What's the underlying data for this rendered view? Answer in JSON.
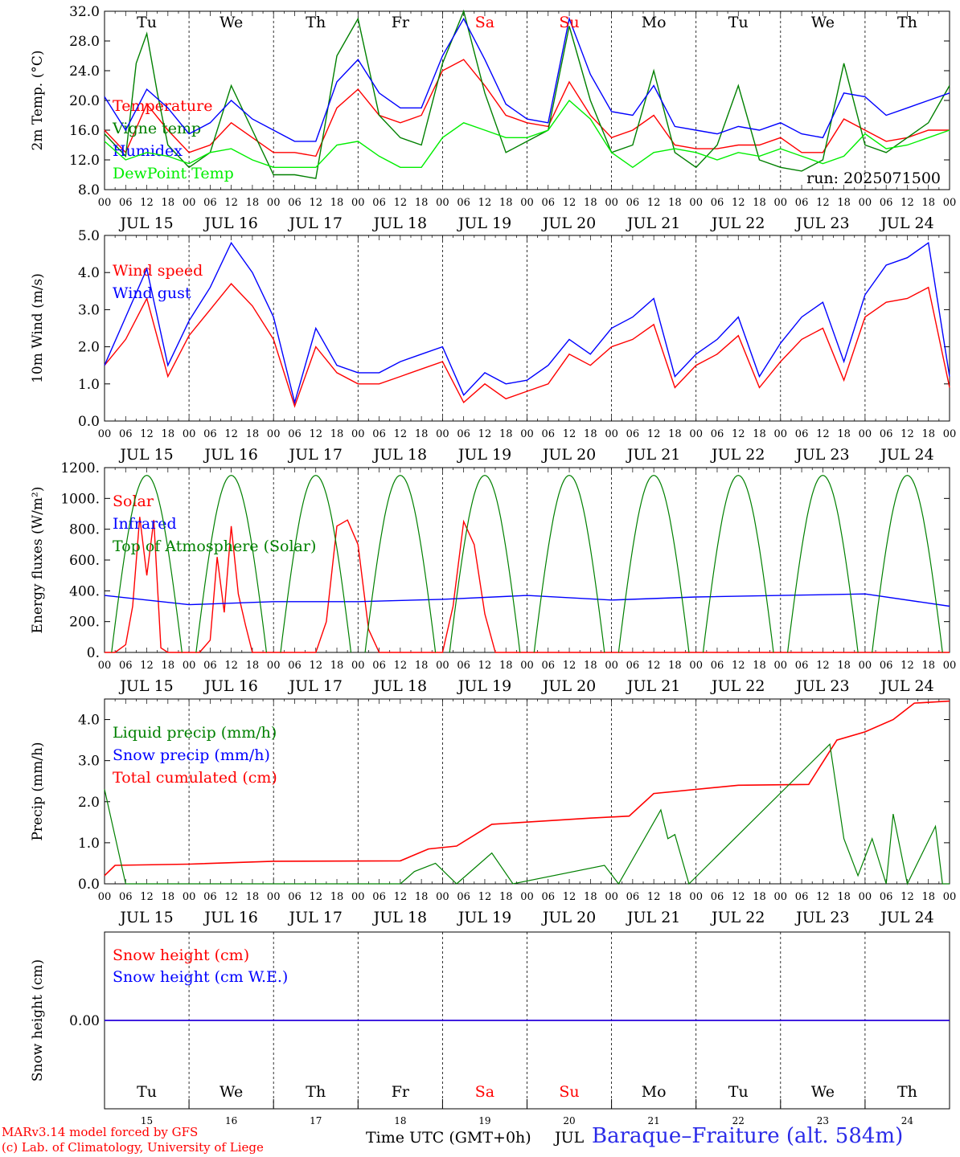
{
  "meta": {
    "run_label": "run: 2025071500",
    "time_axis_label": "Time UTC (GMT+0h)",
    "month_label": "JUL",
    "station_label": "Baraque–Fraiture (alt. 584m)",
    "credit_line1": "MARv3.14 model forced by GFS",
    "credit_line2": "(c) Lab. of Climatology, University of Liege",
    "colors": {
      "red": "#ff0000",
      "green": "#008000",
      "blue": "#0000ff",
      "lime": "#00ee00",
      "station": "#2a2ae8"
    }
  },
  "axis": {
    "hour_ticks": [
      "00",
      "06",
      "12",
      "18"
    ],
    "date_labels": [
      "JUL 15",
      "JUL 16",
      "JUL 17",
      "JUL 18",
      "JUL 19",
      "JUL 20",
      "JUL 21",
      "JUL 22",
      "JUL 23",
      "JUL 24"
    ],
    "weekdays": [
      "Tu",
      "We",
      "Th",
      "Fr",
      "Sa",
      "Su",
      "Mo",
      "Tu",
      "We",
      "Th"
    ],
    "weekend_flags": [
      false,
      false,
      false,
      false,
      true,
      true,
      false,
      false,
      false,
      false
    ],
    "day_numbers": [
      "15",
      "16",
      "17",
      "18",
      "19",
      "20",
      "21",
      "22",
      "23",
      "24"
    ]
  },
  "chart_data": [
    {
      "type": "line",
      "ylabel": "2m Temp. (°C)",
      "ylim": [
        8,
        32
      ],
      "yticks": [
        "32.0",
        "28.0",
        "24.0",
        "20.0",
        "16.0",
        "12.0",
        "8.0"
      ],
      "x_unit": "hours from 2025-07-15 00 UTC",
      "show_weekdays_top": true,
      "series": [
        {
          "name": "Temperature",
          "color": "#ff0000",
          "x": [
            0,
            6,
            12,
            18,
            24,
            30,
            36,
            42,
            48,
            54,
            60,
            66,
            72,
            78,
            84,
            90,
            96,
            102,
            108,
            114,
            120,
            126,
            132,
            138,
            144,
            150,
            156,
            162,
            168,
            174,
            180,
            186,
            192,
            198,
            204,
            210,
            216,
            222,
            228,
            234,
            240
          ],
          "values": [
            16,
            13,
            19.5,
            16,
            13,
            14,
            17,
            15,
            13,
            13,
            12.5,
            19,
            21.5,
            18,
            17,
            18,
            24,
            25.5,
            22,
            18,
            17,
            16.5,
            22.5,
            18,
            15,
            16,
            18,
            14,
            13.5,
            13.5,
            14,
            14,
            15,
            13,
            13,
            17.5,
            16,
            14.5,
            15,
            16,
            16
          ]
        },
        {
          "name": "Vigne temp",
          "color": "#008000",
          "x": [
            0,
            6,
            9,
            12,
            15,
            18,
            24,
            30,
            36,
            42,
            48,
            54,
            60,
            66,
            72,
            78,
            84,
            90,
            96,
            102,
            108,
            114,
            120,
            126,
            132,
            138,
            144,
            150,
            156,
            162,
            168,
            174,
            180,
            186,
            192,
            198,
            204,
            210,
            216,
            222,
            228,
            234,
            240
          ],
          "values": [
            15.5,
            12.5,
            25,
            29,
            21,
            14,
            11,
            13,
            22,
            16,
            10,
            10,
            9.5,
            26,
            31,
            18,
            15,
            14,
            25,
            32,
            21,
            13,
            14.5,
            16,
            30,
            20,
            13,
            14,
            24,
            13,
            11,
            14,
            22,
            12,
            11,
            10.5,
            12,
            25,
            14,
            13,
            15,
            17,
            22
          ]
        },
        {
          "name": "Humidex",
          "color": "#0000ff",
          "x": [
            0,
            6,
            12,
            18,
            24,
            30,
            36,
            42,
            48,
            54,
            60,
            66,
            72,
            78,
            84,
            90,
            96,
            102,
            108,
            114,
            120,
            126,
            132,
            138,
            144,
            150,
            156,
            162,
            168,
            174,
            180,
            186,
            192,
            198,
            204,
            210,
            216,
            222,
            228,
            234,
            240
          ],
          "values": [
            20.5,
            16,
            21.5,
            19,
            15.5,
            17,
            20,
            17.5,
            16,
            14.5,
            14.5,
            22.5,
            25.5,
            21,
            19,
            19,
            26,
            31,
            25.5,
            19.5,
            17.5,
            17,
            31,
            23.5,
            18.5,
            18,
            22,
            16.5,
            16,
            15.5,
            16.5,
            16,
            17,
            15.5,
            15,
            21,
            20.5,
            18,
            19,
            20,
            21
          ]
        },
        {
          "name": "DewPoint Temp",
          "color": "#00ee00",
          "x": [
            0,
            6,
            12,
            18,
            24,
            30,
            36,
            42,
            48,
            54,
            60,
            66,
            72,
            78,
            84,
            90,
            96,
            102,
            108,
            114,
            120,
            126,
            132,
            138,
            144,
            150,
            156,
            162,
            168,
            174,
            180,
            186,
            192,
            198,
            204,
            210,
            216,
            222,
            228,
            234,
            240
          ],
          "values": [
            14.5,
            12,
            13,
            12.5,
            11.5,
            13,
            13.5,
            12,
            11,
            11,
            11,
            14,
            14.5,
            12.5,
            11,
            11,
            15,
            17,
            16,
            15,
            15,
            16,
            20,
            17.5,
            13,
            11,
            13,
            13.5,
            13,
            12,
            13,
            12.5,
            13.5,
            12.5,
            11.5,
            12.5,
            15.5,
            13.5,
            14,
            15,
            16
          ]
        }
      ]
    },
    {
      "type": "line",
      "ylabel": "10m Wind (m/s)",
      "ylim": [
        0,
        5
      ],
      "yticks": [
        "5.0",
        "4.0",
        "3.0",
        "2.0",
        "1.0",
        "0.0"
      ],
      "series": [
        {
          "name": "Wind speed",
          "color": "#ff0000",
          "x": [
            0,
            6,
            12,
            18,
            24,
            30,
            36,
            42,
            48,
            54,
            60,
            66,
            72,
            78,
            84,
            90,
            96,
            102,
            108,
            114,
            120,
            126,
            132,
            138,
            144,
            150,
            156,
            162,
            168,
            174,
            180,
            186,
            192,
            198,
            204,
            210,
            216,
            222,
            228,
            234,
            240
          ],
          "values": [
            1.5,
            2.2,
            3.3,
            1.2,
            2.3,
            3,
            3.7,
            3.1,
            2.2,
            0.4,
            2,
            1.3,
            1,
            1,
            1.2,
            1.4,
            1.6,
            0.5,
            1,
            0.6,
            0.8,
            1,
            1.8,
            1.5,
            2,
            2.2,
            2.6,
            0.9,
            1.5,
            1.8,
            2.3,
            0.9,
            1.6,
            2.2,
            2.5,
            1.1,
            2.8,
            3.2,
            3.3,
            3.6,
            0.9
          ]
        },
        {
          "name": "Wind gust",
          "color": "#0000ff",
          "x": [
            0,
            6,
            12,
            18,
            24,
            30,
            36,
            42,
            48,
            54,
            60,
            66,
            72,
            78,
            84,
            90,
            96,
            102,
            108,
            114,
            120,
            126,
            132,
            138,
            144,
            150,
            156,
            162,
            168,
            174,
            180,
            186,
            192,
            198,
            204,
            210,
            216,
            222,
            228,
            234,
            240
          ],
          "values": [
            1.5,
            2.8,
            4.1,
            1.5,
            2.7,
            3.6,
            4.8,
            4,
            2.8,
            0.5,
            2.5,
            1.5,
            1.3,
            1.3,
            1.6,
            1.8,
            2.0,
            0.7,
            1.3,
            1.0,
            1.1,
            1.5,
            2.2,
            1.8,
            2.5,
            2.8,
            3.3,
            1.2,
            1.8,
            2.2,
            2.8,
            1.2,
            2.1,
            2.8,
            3.2,
            1.6,
            3.4,
            4.2,
            4.4,
            4.8,
            1.2
          ]
        }
      ]
    },
    {
      "type": "line",
      "ylabel": "Energy fluxes (W/m²)",
      "ylim": [
        0,
        1200
      ],
      "yticks": [
        "1200.",
        "1000.",
        "800.",
        "600.",
        "400.",
        "200.",
        "0."
      ],
      "series": [
        {
          "name": "Solar",
          "color": "#ff0000",
          "x": [
            0,
            3,
            6,
            8,
            10,
            12,
            14,
            16,
            18,
            21,
            24,
            27,
            30,
            32,
            34,
            36,
            38,
            40,
            42,
            45,
            48,
            51,
            54,
            57,
            60,
            63,
            66,
            69,
            72,
            75,
            78,
            81,
            84,
            90,
            96,
            99,
            102,
            105,
            108,
            111,
            114,
            117,
            120,
            123,
            126,
            129,
            132,
            135,
            138,
            141,
            144,
            150,
            156,
            159,
            162,
            165,
            168,
            171,
            174,
            177,
            180,
            183,
            186,
            192,
            198,
            201,
            204,
            207,
            210,
            213,
            216,
            219,
            222,
            225,
            228,
            234,
            240,
            243,
            246,
            249,
            252,
            255,
            258,
            261,
            264,
            267,
            270,
            273,
            276
          ],
          "values": [
            0,
            0,
            50,
            300,
            880,
            500,
            860,
            30,
            0,
            0,
            0,
            0,
            80,
            620,
            260,
            820,
            380,
            180,
            0,
            0,
            0,
            0,
            0,
            0,
            0,
            200,
            820,
            860,
            700,
            150,
            0,
            0,
            0,
            0,
            0,
            300,
            850,
            700,
            250,
            0,
            0,
            0,
            0,
            0,
            0,
            0,
            0,
            0,
            0,
            0,
            0,
            0,
            0,
            0,
            0,
            0,
            0,
            0,
            0,
            0,
            0,
            0,
            0,
            0,
            0,
            0,
            0,
            0,
            0,
            0,
            0,
            0,
            0,
            0,
            0,
            0,
            0,
            0,
            0,
            0,
            0,
            0,
            0,
            0,
            0,
            0,
            0,
            0,
            0
          ]
        },
        {
          "name": "Infrared",
          "color": "#0000ff",
          "x": [
            0,
            24,
            48,
            72,
            96,
            120,
            144,
            168,
            192,
            216,
            240
          ],
          "values": [
            370,
            310,
            330,
            330,
            345,
            370,
            340,
            360,
            370,
            380,
            300
          ]
        },
        {
          "name": "Top of Atmosphere (Solar)",
          "color": "#008000",
          "peak": 1150
        }
      ]
    },
    {
      "type": "line",
      "ylabel": "Precip (mm/h)",
      "ylim": [
        0,
        4.5
      ],
      "yticks": [
        "4.0",
        "3.0",
        "2.0",
        "1.0",
        "0.0"
      ],
      "series": [
        {
          "name": "Liquid precip (mm/h)",
          "color": "#008000"
        },
        {
          "name": "Snow precip (mm/h)",
          "color": "#0000ff"
        },
        {
          "name": "Total cumulated (cm)",
          "color": "#ff0000"
        }
      ]
    },
    {
      "type": "line",
      "ylabel": "Snow height (cm)",
      "ylim": [
        -1,
        1
      ],
      "yticks": [
        "0.00"
      ],
      "show_weekdays_bottom": true,
      "series": [
        {
          "name": "Snow height (cm)",
          "color": "#ff0000",
          "values": [
            0,
            0
          ]
        },
        {
          "name": "Snow height (cm W.E.)",
          "color": "#0000ff",
          "values": [
            0,
            0
          ]
        }
      ]
    }
  ]
}
